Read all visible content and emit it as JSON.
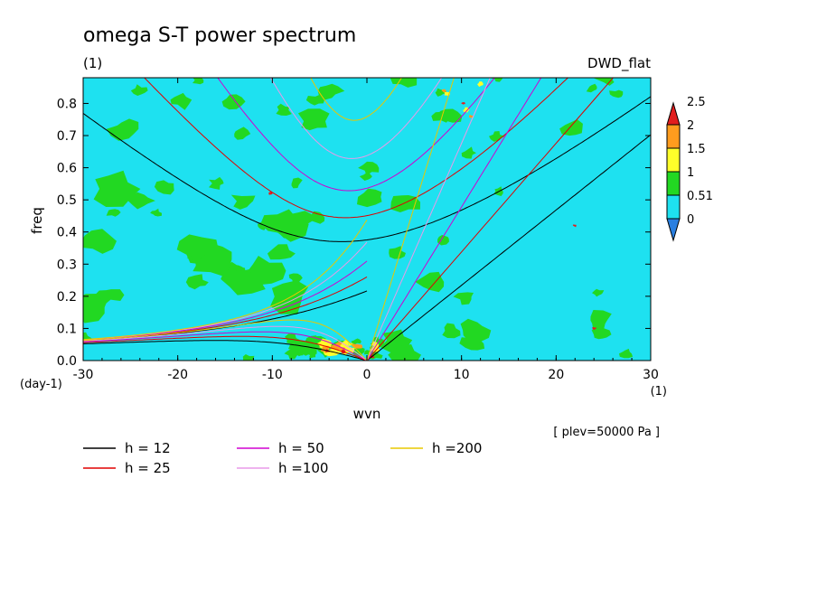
{
  "chart_data": {
    "type": "heatmap",
    "title": "omega S-T power spectrum",
    "units_label": "(1)",
    "model_label": "DWD_flat",
    "xlabel": "wvn",
    "ylabel": "freq",
    "x_units": "(1)",
    "y_units": "(day-1)",
    "level_note": "[ plev=50000 Pa ]",
    "xlim": [
      -30,
      30
    ],
    "ylim": [
      0,
      0.88
    ],
    "x_ticks": [
      -30,
      -20,
      -10,
      0,
      10,
      20,
      30
    ],
    "y_ticks": [
      0.0,
      0.1,
      0.2,
      0.3,
      0.4,
      0.5,
      0.6,
      0.7,
      0.8
    ],
    "x_tick_labels": [
      "-30",
      "-20",
      "-10",
      "0",
      "10",
      "20",
      "30"
    ],
    "y_tick_labels": [
      "0.0",
      "0.1",
      "0.2",
      "0.3",
      "0.4",
      "0.5",
      "0.6",
      "0.7",
      "0.8"
    ],
    "colorbar": {
      "levels": [
        0,
        0.51,
        1,
        1.5,
        2,
        2.5
      ],
      "labels": [
        "0",
        "0.51",
        "1",
        "1.5",
        "2",
        "2.5"
      ],
      "colors": [
        "#2a7fe0",
        "#1ee1f0",
        "#22d822",
        "#ffff2a",
        "#ff9c1e",
        "#e21e1e"
      ],
      "background": "#1ee1f0"
    },
    "dispersion_curves": [
      {
        "name": "h = 12",
        "color": "#000000"
      },
      {
        "name": "h = 25",
        "color": "#e00000"
      },
      {
        "name": "h = 50",
        "color": "#d000d0"
      },
      {
        "name": "h =100",
        "color": "#e89ae8"
      },
      {
        "name": "h =200",
        "color": "#e8c800"
      }
    ],
    "equivalent_depths_m": [
      12,
      25,
      50,
      100,
      200
    ]
  }
}
